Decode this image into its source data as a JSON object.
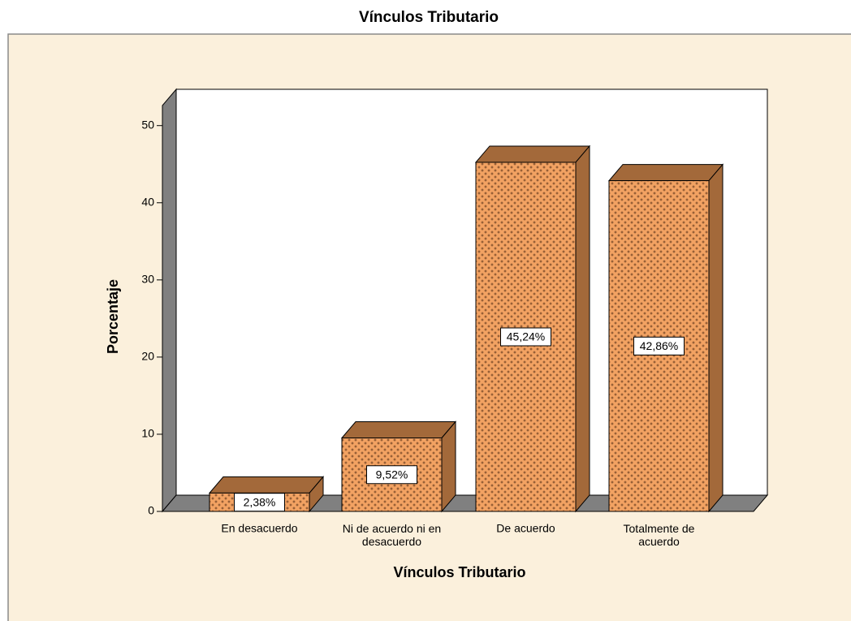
{
  "chart_data": {
    "type": "bar3d",
    "title": "Vínculos Tributario",
    "x_label": "Vínculos Tributario",
    "y_label": "Porcentaje",
    "categories": [
      "En desacuerdo",
      "Ni de acuerdo ni en desacuerdo",
      "De acuerdo",
      "Totalmente de acuerdo"
    ],
    "values": [
      2.38,
      9.52,
      45.24,
      42.86
    ],
    "value_labels": [
      "2,38%",
      "9,52%",
      "45,24%",
      "42,86%"
    ],
    "color": "#f2a262",
    "side_color": "#a3693a",
    "ylim": [
      0,
      52.6
    ],
    "yticks": [
      0,
      10,
      20,
      30,
      40,
      50
    ]
  }
}
